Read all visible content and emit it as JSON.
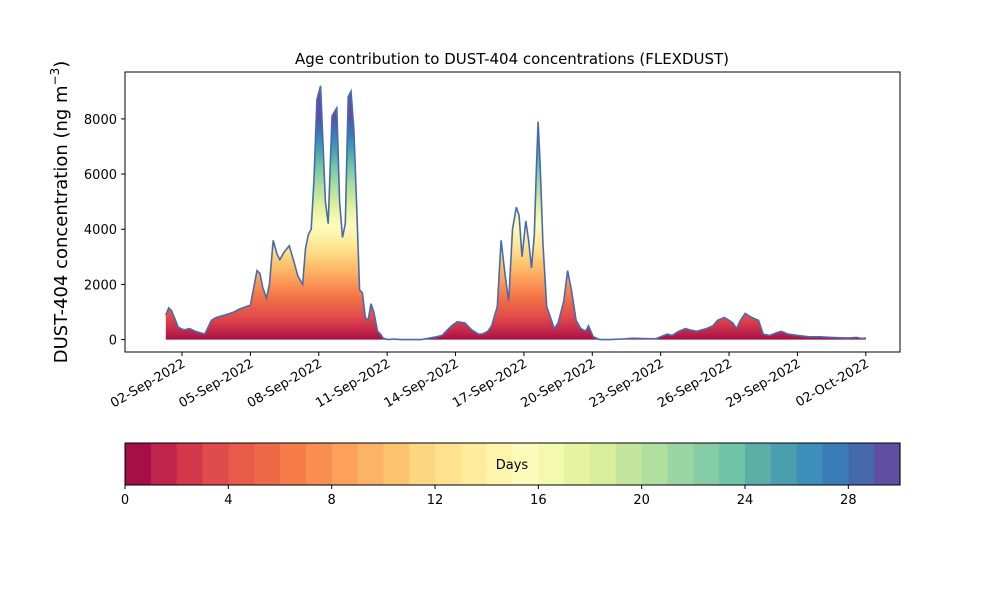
{
  "chart_data": {
    "type": "area",
    "title": "Age contribution to DUST-404 concentrations (FLEXDUST)",
    "ylabel": "DUST-404 concentration (ng m",
    "ylabel_sup": "−3",
    "ylabel_close": ")",
    "xlabel": "",
    "ylim": [
      -450,
      9700
    ],
    "y_ticks": [
      0,
      2000,
      4000,
      6000,
      8000
    ],
    "x_ticks": [
      "02-Sep-2022",
      "05-Sep-2022",
      "08-Sep-2022",
      "11-Sep-2022",
      "14-Sep-2022",
      "17-Sep-2022",
      "20-Sep-2022",
      "23-Sep-2022",
      "26-Sep-2022",
      "29-Sep-2022",
      "02-Oct-2022"
    ],
    "x_range_days": [
      "2022-08-30T12:00",
      "2022-10-03T12:00"
    ],
    "x_unit": "date",
    "x": [
      "2022-09-01T07:00",
      "2022-09-01T10:00",
      "2022-09-01T13:00",
      "2022-09-01T16:00",
      "2022-09-01T20:00",
      "2022-09-02T02:00",
      "2022-09-02T08:00",
      "2022-09-02T14:00",
      "2022-09-03T00:00",
      "2022-09-03T07:00",
      "2022-09-03T12:00",
      "2022-09-03T22:00",
      "2022-09-04T07:00",
      "2022-09-04T12:00",
      "2022-09-04T16:00",
      "2022-09-04T20:00",
      "2022-09-05T00:00",
      "2022-09-05T07:00",
      "2022-09-05T10:00",
      "2022-09-05T13:00",
      "2022-09-05T17:00",
      "2022-09-05T20:00",
      "2022-09-06T00:00",
      "2022-09-06T04:00",
      "2022-09-06T07:00",
      "2022-09-06T12:00",
      "2022-09-06T17:00",
      "2022-09-06T22:00",
      "2022-09-07T02:00",
      "2022-09-07T07:00",
      "2022-09-07T10:00",
      "2022-09-07T13:00",
      "2022-09-07T16:00",
      "2022-09-07T19:00",
      "2022-09-07T22:00",
      "2022-09-08T02:00",
      "2022-09-08T07:00",
      "2022-09-08T10:00",
      "2022-09-08T14:00",
      "2022-09-08T19:00",
      "2022-09-08T22:00",
      "2022-09-09T01:00",
      "2022-09-09T04:00",
      "2022-09-09T07:00",
      "2022-09-09T10:00",
      "2022-09-09T13:00",
      "2022-09-09T16:00",
      "2022-09-09T19:00",
      "2022-09-09T22:00",
      "2022-09-10T01:00",
      "2022-09-10T04:00",
      "2022-09-10T07:00",
      "2022-09-10T10:00",
      "2022-09-10T14:00",
      "2022-09-10T17:00",
      "2022-09-10T20:00",
      "2022-09-11T01:00",
      "2022-09-11T07:00",
      "2022-09-11T14:00",
      "2022-09-12T00:00",
      "2022-09-12T12:00",
      "2022-09-12T20:00",
      "2022-09-13T04:00",
      "2022-09-13T10:00",
      "2022-09-13T14:00",
      "2022-09-13T20:00",
      "2022-09-14T02:00",
      "2022-09-14T10:00",
      "2022-09-14T17:00",
      "2022-09-15T00:00",
      "2022-09-15T04:00",
      "2022-09-15T07:00",
      "2022-09-15T10:00",
      "2022-09-15T14:00",
      "2022-09-15T20:00",
      "2022-09-16T00:00",
      "2022-09-16T04:00",
      "2022-09-16T08:00",
      "2022-09-16T12:00",
      "2022-09-16T16:00",
      "2022-09-16T19:00",
      "2022-09-16T22:00",
      "2022-09-17T02:00",
      "2022-09-17T05:00",
      "2022-09-17T08:00",
      "2022-09-17T11:00",
      "2022-09-17T13:00",
      "2022-09-17T15:00",
      "2022-09-17T17:00",
      "2022-09-17T20:00",
      "2022-09-18T00:00",
      "2022-09-18T04:00",
      "2022-09-18T08:00",
      "2022-09-18T12:00",
      "2022-09-18T18:00",
      "2022-09-18T22:00",
      "2022-09-19T02:00",
      "2022-09-19T07:00",
      "2022-09-19T12:00",
      "2022-09-19T17:00",
      "2022-09-19T20:00",
      "2022-09-20T01:00",
      "2022-09-20T08:00",
      "2022-09-20T19:00",
      "2022-09-21T07:00",
      "2022-09-21T19:00",
      "2022-09-22T07:00",
      "2022-09-22T19:00",
      "2022-09-23T00:00",
      "2022-09-23T07:00",
      "2022-09-23T12:00",
      "2022-09-23T19:00",
      "2022-09-24T02:00",
      "2022-09-24T07:00",
      "2022-09-24T14:00",
      "2022-09-25T00:00",
      "2022-09-25T07:00",
      "2022-09-25T12:00",
      "2022-09-25T19:00",
      "2022-09-26T00:00",
      "2022-09-26T04:00",
      "2022-09-26T08:00",
      "2022-09-26T12:00",
      "2022-09-26T17:00",
      "2022-09-27T00:00",
      "2022-09-27T07:00",
      "2022-09-27T12:00",
      "2022-09-27T19:00",
      "2022-09-28T02:00",
      "2022-09-28T07:00",
      "2022-09-28T14:00",
      "2022-09-29T00:00",
      "2022-09-29T12:00",
      "2022-09-30T00:00",
      "2022-09-30T12:00",
      "2022-10-01T00:00",
      "2022-10-01T07:00",
      "2022-10-01T14:00",
      "2022-10-01T20:00",
      "2022-10-02T00:00"
    ],
    "series": [
      {
        "total": [
          900,
          1150,
          1050,
          800,
          450,
          350,
          400,
          300,
          200,
          700,
          800,
          900,
          1000,
          1100,
          1150,
          1200,
          1250,
          2500,
          2400,
          1900,
          1500,
          2000,
          3600,
          3100,
          2900,
          3200,
          3400,
          2800,
          2300,
          2000,
          3300,
          3800,
          4000,
          5800,
          8700,
          9200,
          5000,
          4200,
          8100,
          8400,
          5000,
          3700,
          4200,
          8800,
          9000,
          7600,
          4800,
          1800,
          1700,
          800,
          700,
          1300,
          1000,
          300,
          200,
          50,
          0,
          20,
          0,
          0,
          0,
          50,
          100,
          150,
          300,
          500,
          650,
          600,
          350,
          200,
          200,
          250,
          300,
          500,
          1200,
          3600,
          2400,
          1400,
          4000,
          4800,
          4500,
          3000,
          4300,
          3600,
          2600,
          3800,
          6000,
          7900,
          6500,
          3500,
          1200,
          800,
          400,
          600,
          1400,
          2500,
          1800,
          700,
          400,
          300,
          500,
          100,
          0,
          0,
          20,
          50,
          40,
          30,
          100,
          200,
          150,
          300,
          400,
          350,
          300,
          400,
          500,
          700,
          800,
          700,
          600,
          400,
          700,
          950,
          800,
          700,
          200,
          150,
          250,
          300,
          200,
          150,
          100,
          100,
          80,
          60,
          60,
          80,
          40,
          60
        ]
      }
    ],
    "colorbar": {
      "label": "Days",
      "ticks": [
        "0",
        "4",
        "8",
        "12",
        "16",
        "20",
        "24",
        "28"
      ],
      "range": [
        0,
        30
      ],
      "colors": [
        "#a50f46",
        "#bf2449",
        "#d2374a",
        "#e04b4c",
        "#e85a49",
        "#ee6a46",
        "#f57b47",
        "#f98d52",
        "#fca05c",
        "#fdb365",
        "#fdc470",
        "#fed580",
        "#fee28e",
        "#feec9c",
        "#fef5ad",
        "#fdfbba",
        "#f3f9ae",
        "#e6f4a0",
        "#d8ee9b",
        "#c3e69c",
        "#b0df9f",
        "#9ad6a4",
        "#84cda6",
        "#6fc3a6",
        "#5ab0a6",
        "#4a9fae",
        "#3b8fb8",
        "#3a7bb7",
        "#4669ab",
        "#5e4fa2"
      ],
      "edge_color": "#4a6ab0"
    }
  }
}
